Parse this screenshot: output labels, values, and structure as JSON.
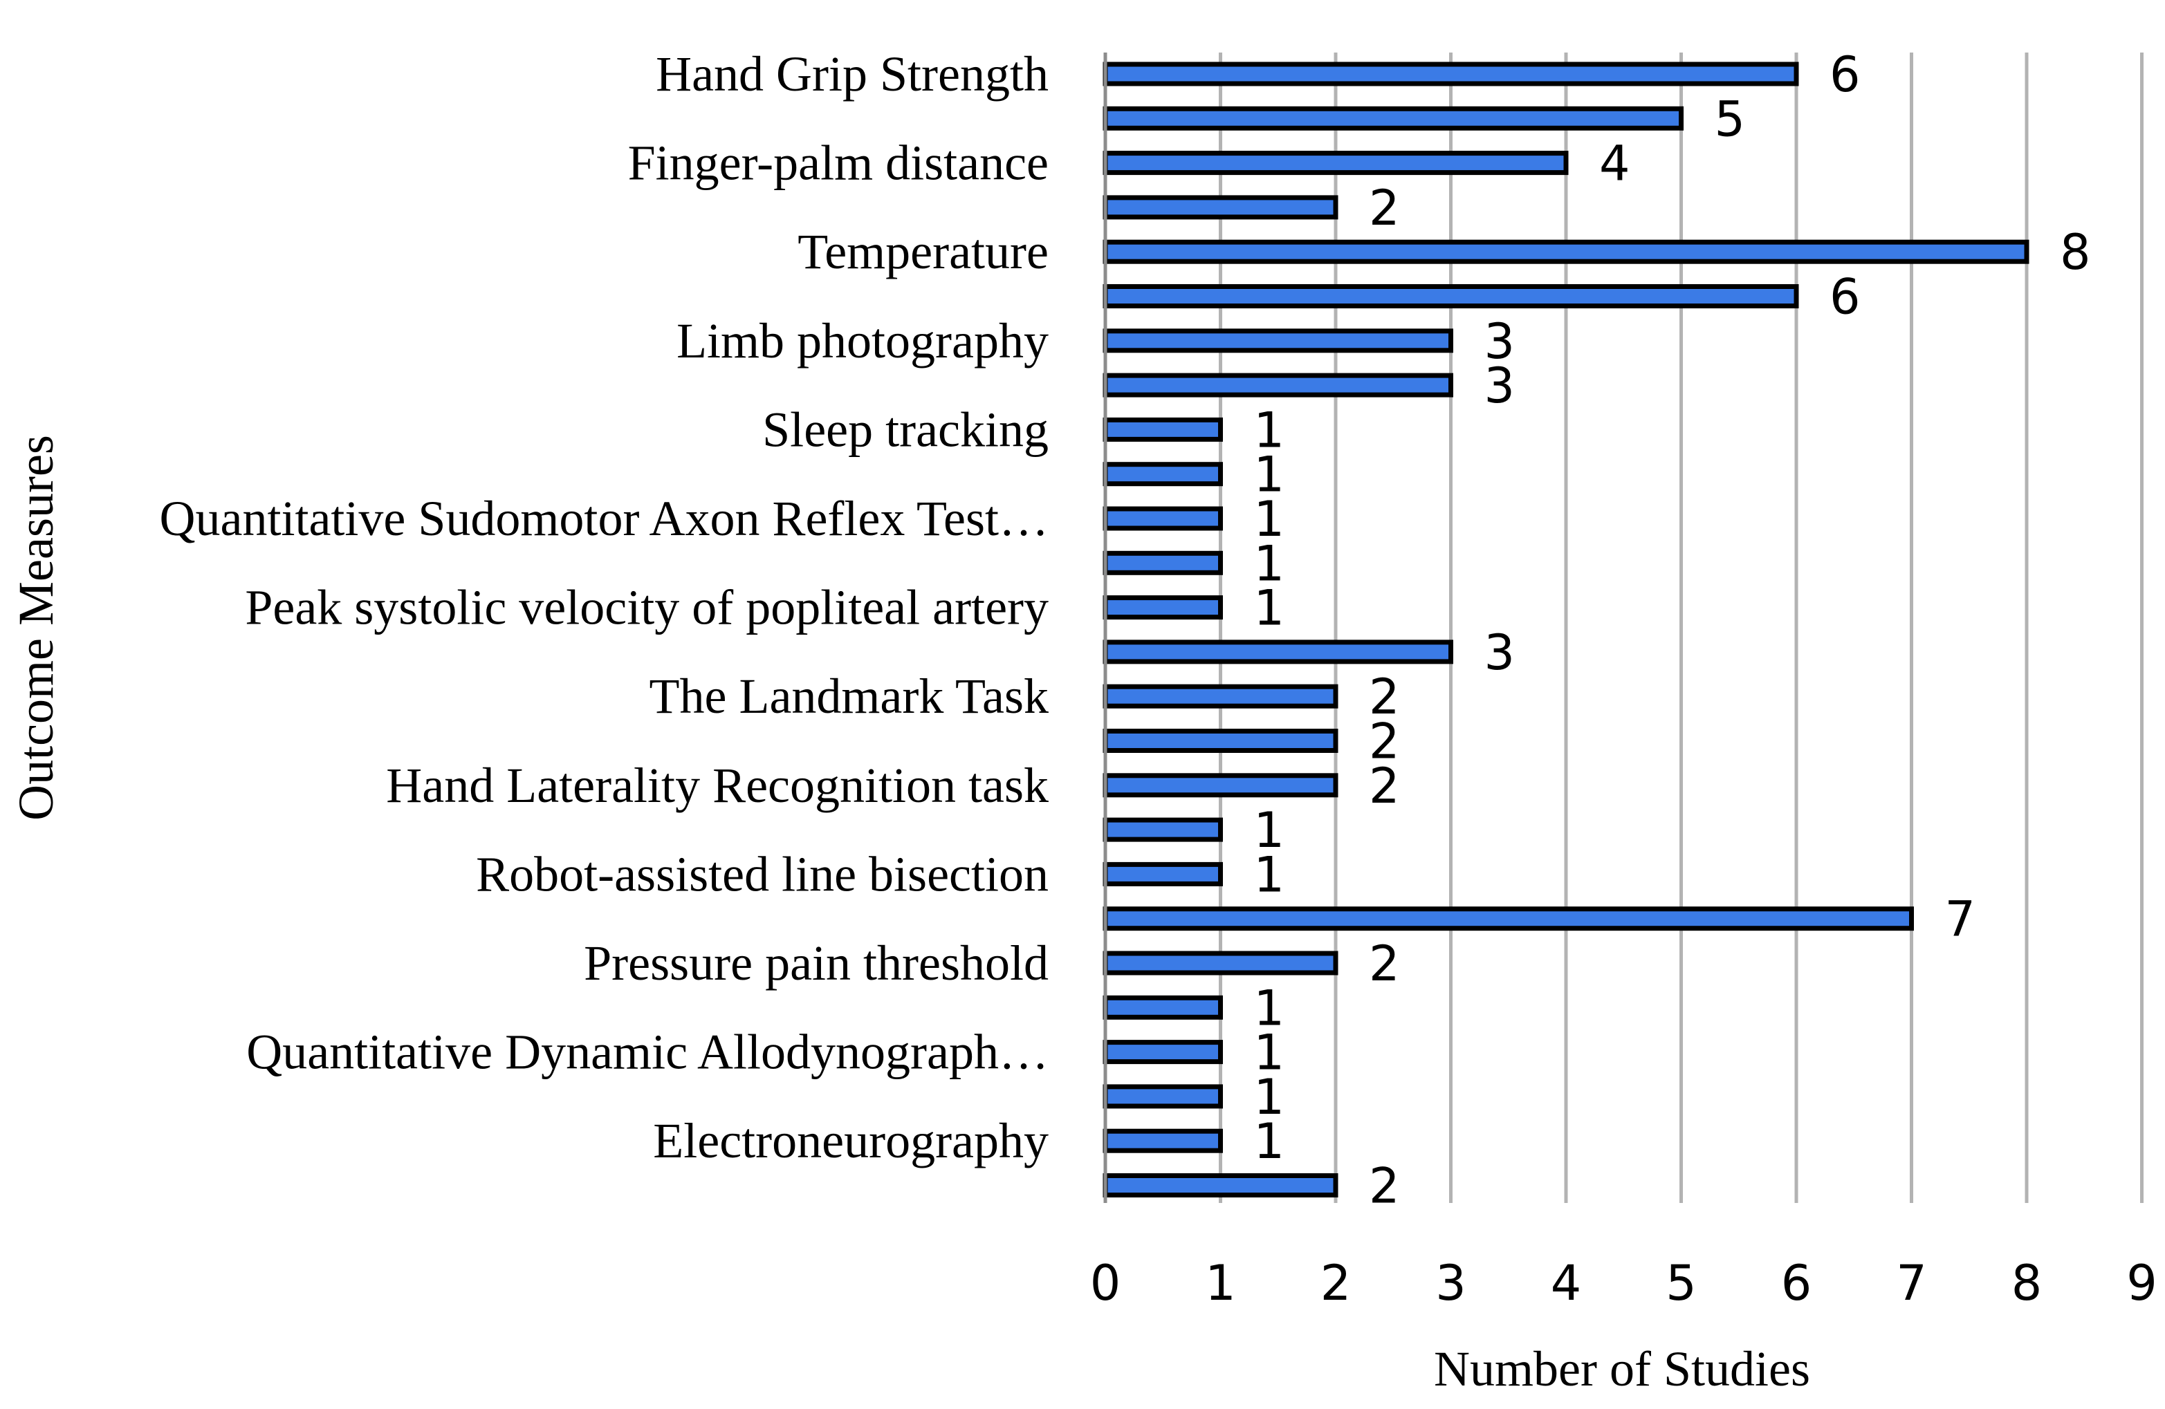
{
  "chart_data": {
    "type": "bar",
    "orientation": "horizontal",
    "xlabel": "Number of Studies",
    "ylabel": "Outcome Measures",
    "xlim": [
      0,
      9
    ],
    "x_ticks": [
      "0",
      "1",
      "2",
      "3",
      "4",
      "5",
      "6",
      "7",
      "8",
      "9"
    ],
    "grid": "vertical",
    "legend": "none",
    "bar_color": "#3b7be6",
    "categories": [
      "Hand Grip Strength",
      "",
      "Finger-palm distance",
      "",
      "Temperature",
      "",
      "Limb photography",
      "",
      "Sleep tracking",
      "",
      "Quantitative Sudomotor Axon Reflex Test…",
      "",
      "Peak systolic velocity of popliteal artery",
      "",
      "The Landmark Task",
      "",
      "Hand Laterality Recognition task",
      "",
      "Robot-assisted line bisection",
      "",
      "Pressure pain threshold",
      "",
      "Quantitative Dynamic Allodynograph…",
      "",
      "Electroneurography",
      ""
    ],
    "values": [
      6,
      5,
      4,
      2,
      8,
      6,
      3,
      3,
      1,
      1,
      1,
      1,
      1,
      3,
      2,
      2,
      2,
      1,
      1,
      7,
      2,
      1,
      1,
      1,
      1,
      2
    ],
    "value_labels": [
      "6",
      "5",
      "4",
      "2",
      "8",
      "6",
      "3",
      "3",
      "1",
      "1",
      "1",
      "1",
      "1",
      "3",
      "2",
      "2",
      "2",
      "1",
      "1",
      "7",
      "2",
      "1",
      "1",
      "1",
      "1",
      "2"
    ]
  }
}
